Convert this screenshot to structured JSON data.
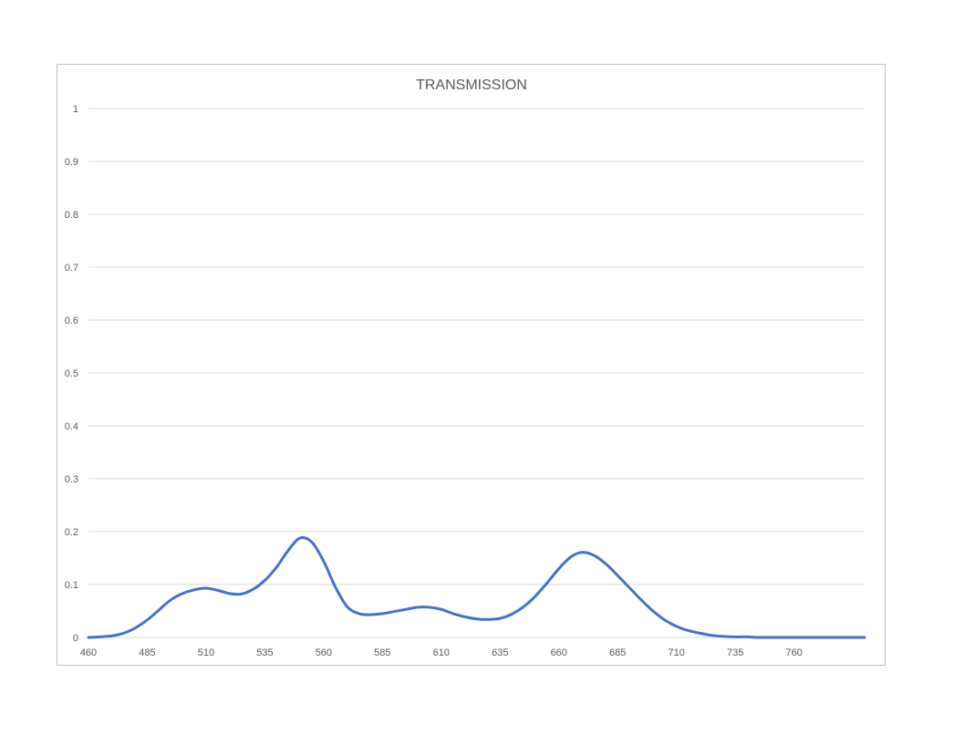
{
  "chart_data": {
    "type": "line",
    "title": "TRANSMISSION",
    "xlabel": "",
    "ylabel": "",
    "xlim": [
      460,
      790
    ],
    "ylim": [
      0,
      1
    ],
    "x_ticks": [
      "460",
      "485",
      "510",
      "535",
      "560",
      "585",
      "610",
      "635",
      "660",
      "685",
      "710",
      "735",
      "760"
    ],
    "y_ticks": [
      "0",
      "0.1",
      "0.2",
      "0.3",
      "0.4",
      "0.5",
      "0.6",
      "0.7",
      "0.8",
      "0.9",
      "1"
    ],
    "grid": true,
    "legend": "none",
    "series": [
      {
        "color": "#4472c4",
        "x": [
          460,
          465,
          470,
          475,
          480,
          485,
          490,
          495,
          500,
          505,
          510,
          515,
          520,
          525,
          530,
          535,
          540,
          545,
          550,
          555,
          560,
          565,
          570,
          575,
          580,
          585,
          590,
          595,
          600,
          605,
          610,
          615,
          620,
          625,
          630,
          635,
          640,
          645,
          650,
          655,
          660,
          665,
          670,
          675,
          680,
          685,
          690,
          695,
          700,
          705,
          710,
          715,
          720,
          725,
          730,
          735,
          740,
          745,
          750,
          760,
          770,
          780,
          790
        ],
        "y": [
          0.0,
          0.001,
          0.003,
          0.008,
          0.018,
          0.033,
          0.052,
          0.071,
          0.083,
          0.09,
          0.093,
          0.089,
          0.083,
          0.082,
          0.091,
          0.108,
          0.133,
          0.165,
          0.188,
          0.18,
          0.144,
          0.095,
          0.058,
          0.045,
          0.043,
          0.045,
          0.049,
          0.053,
          0.057,
          0.057,
          0.053,
          0.045,
          0.039,
          0.035,
          0.034,
          0.036,
          0.044,
          0.058,
          0.078,
          0.103,
          0.13,
          0.152,
          0.161,
          0.155,
          0.139,
          0.117,
          0.094,
          0.071,
          0.05,
          0.033,
          0.021,
          0.013,
          0.008,
          0.004,
          0.002,
          0.001,
          0.001,
          0.0,
          0.0,
          0.0,
          0.0,
          0.0,
          0.0
        ]
      }
    ]
  }
}
